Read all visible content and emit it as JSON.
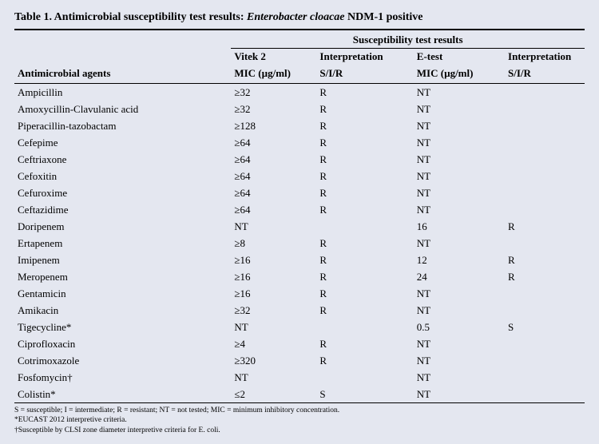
{
  "title_prefix": "Table 1. Antimicrobial susceptibility test results: ",
  "title_italic": "Enterobacter cloacae",
  "title_suffix": " NDM-1 positive",
  "super_header": "Susceptibility test results",
  "headers": {
    "agent": "Antimicrobial agents",
    "vitek_top": "Vitek 2",
    "vitek_bot": "MIC (µg/ml)",
    "interp1_top": "Interpretation",
    "interp1_bot": "S/I/R",
    "etest_top": "E-test",
    "etest_bot": "MIC (µg/ml)",
    "interp2_top": "Interpretation",
    "interp2_bot": "S/I/R"
  },
  "rows": [
    {
      "agent": "Ampicillin",
      "vitek": "≥32",
      "i1": "R",
      "etest": "NT",
      "i2": ""
    },
    {
      "agent": "Amoxycillin-Clavulanic acid",
      "vitek": "≥32",
      "i1": "R",
      "etest": "NT",
      "i2": ""
    },
    {
      "agent": "Piperacillin-tazobactam",
      "vitek": "≥128",
      "i1": "R",
      "etest": "NT",
      "i2": ""
    },
    {
      "agent": "Cefepime",
      "vitek": "≥64",
      "i1": "R",
      "etest": "NT",
      "i2": ""
    },
    {
      "agent": "Ceftriaxone",
      "vitek": "≥64",
      "i1": "R",
      "etest": "NT",
      "i2": ""
    },
    {
      "agent": "Cefoxitin",
      "vitek": "≥64",
      "i1": "R",
      "etest": "NT",
      "i2": ""
    },
    {
      "agent": "Cefuroxime",
      "vitek": "≥64",
      "i1": "R",
      "etest": "NT",
      "i2": ""
    },
    {
      "agent": "Ceftazidime",
      "vitek": "≥64",
      "i1": "R",
      "etest": "NT",
      "i2": ""
    },
    {
      "agent": "Doripenem",
      "vitek": "NT",
      "i1": "",
      "etest": "16",
      "i2": "R"
    },
    {
      "agent": "Ertapenem",
      "vitek": "≥8",
      "i1": "R",
      "etest": "NT",
      "i2": ""
    },
    {
      "agent": "Imipenem",
      "vitek": "≥16",
      "i1": "R",
      "etest": "12",
      "i2": "R"
    },
    {
      "agent": "Meropenem",
      "vitek": "≥16",
      "i1": "R",
      "etest": "24",
      "i2": "R"
    },
    {
      "agent": "Gentamicin",
      "vitek": "≥16",
      "i1": "R",
      "etest": "NT",
      "i2": ""
    },
    {
      "agent": "Amikacin",
      "vitek": "≥32",
      "i1": "R",
      "etest": "NT",
      "i2": ""
    },
    {
      "agent": "Tigecycline*",
      "vitek": "NT",
      "i1": "",
      "etest": "0.5",
      "i2": "S"
    },
    {
      "agent": "Ciprofloxacin",
      "vitek": "≥4",
      "i1": "R",
      "etest": "NT",
      "i2": ""
    },
    {
      "agent": "Cotrimoxazole",
      "vitek": "≥320",
      "i1": "R",
      "etest": "NT",
      "i2": ""
    },
    {
      "agent": "Fosfomycin†",
      "vitek": "NT",
      "i1": "",
      "etest": "NT",
      "i2": ""
    },
    {
      "agent": "Colistin*",
      "vitek": "≤2",
      "i1": "S",
      "etest": "NT",
      "i2": ""
    }
  ],
  "footnotes": [
    "S = susceptible; I = intermediate; R = resistant; NT = not tested; MIC = minimum inhibitory concentration.",
    "*EUCAST 2012 interpretive criteria.",
    "†Susceptible by CLSI zone diameter interpretive criteria for E. coli."
  ]
}
